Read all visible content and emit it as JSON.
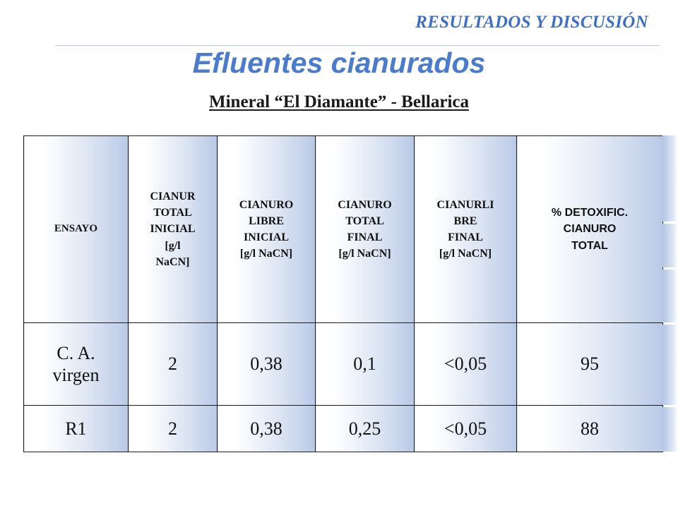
{
  "header": {
    "section": "RESULTADOS Y DISCUSIÓN",
    "title": "Efluentes cianurados",
    "subtitle": "Mineral “El Diamante” - Bellarica"
  },
  "table": {
    "columns": [
      "ENSAYO",
      "CIANUR\nTOTAL\nINICIAL\n[g/l\nNaCN]",
      "CIANURO\nLIBRE\nINICIAL\n[g/l NaCN]",
      "CIANURO\nTOTAL\nFINAL\n[g/l NaCN]",
      "CIANURLI\nBRE\nFINAL\n[g/l NaCN]",
      "% DETOXIFIC.\nCIANURO\nTOTAL"
    ],
    "rows": [
      [
        "C. A.\nvirgen",
        "2",
        "0,38",
        "0,1",
        "<0,05",
        "95"
      ],
      [
        "R1",
        "2",
        "0,38",
        "0,25",
        "<0,05",
        "88"
      ]
    ]
  },
  "colors": {
    "accent": "#3f6fc4",
    "title": "#4a7bcd",
    "cell_gradient_end": "#b9c9e6"
  }
}
